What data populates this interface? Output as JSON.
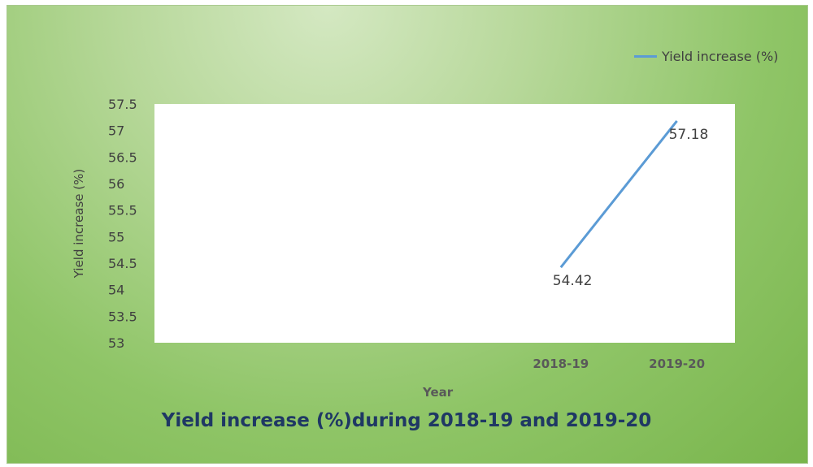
{
  "chart_data": {
    "type": "line",
    "title": "Yield increase (%)during 2018-19 and 2019-20",
    "xlabel": "Year",
    "ylabel": "Yield increase (%)",
    "categories": [
      "",
      "",
      "",
      "2018-19",
      "2019-20"
    ],
    "series": [
      {
        "name": "Yield increase (%)",
        "values": [
          null,
          null,
          null,
          54.42,
          57.18
        ],
        "color": "#5b9bd5"
      }
    ],
    "data_labels": [
      "54.42",
      "57.18"
    ],
    "ylim": [
      53,
      57.5
    ],
    "yticks": [
      "53",
      "53.5",
      "54",
      "54.5",
      "55",
      "55.5",
      "56",
      "56.5",
      "57",
      "57.5"
    ],
    "grid": false,
    "legend": "top-right"
  }
}
